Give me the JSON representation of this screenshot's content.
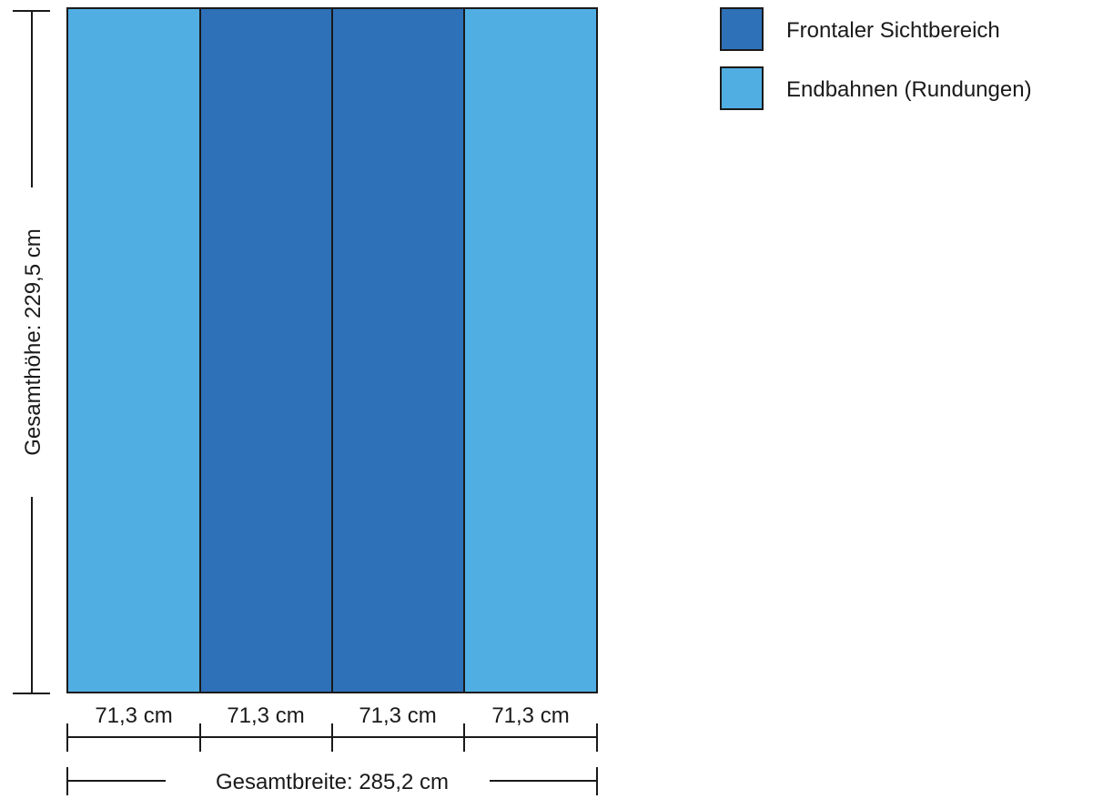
{
  "panels": [
    {
      "width_label": "71,3 cm",
      "type": "end"
    },
    {
      "width_label": "71,3 cm",
      "type": "front"
    },
    {
      "width_label": "71,3 cm",
      "type": "front"
    },
    {
      "width_label": "71,3 cm",
      "type": "end"
    }
  ],
  "colors": {
    "front": "#2e71b8",
    "end": "#50aee2",
    "outline": "#1a1a1a"
  },
  "dimensions": {
    "height_label": "Gesamthöhe: 229,5 cm",
    "width_label": "Gesamtbreite: 285,2 cm"
  },
  "legend": [
    {
      "label": "Frontaler Sichtbereich",
      "type": "front"
    },
    {
      "label": "Endbahnen (Rundungen)",
      "type": "end"
    }
  ]
}
